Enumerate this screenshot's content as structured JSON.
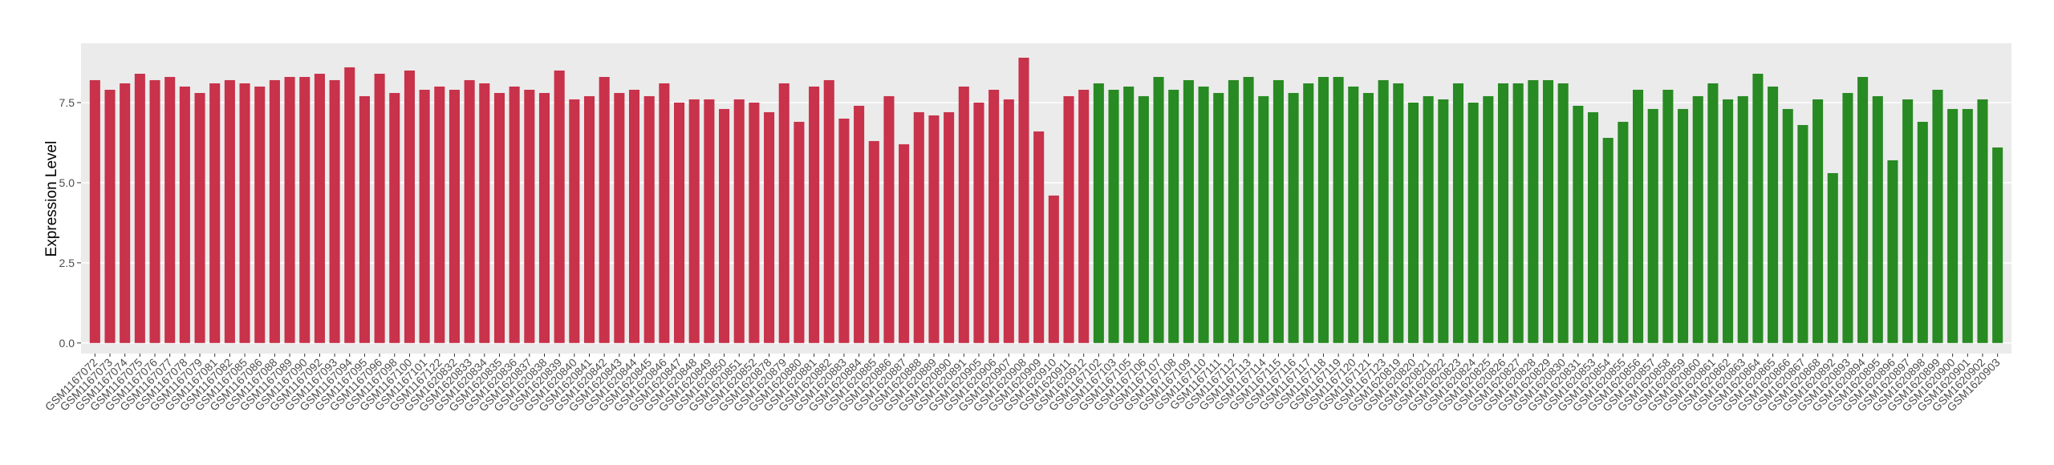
{
  "chart_data": {
    "type": "bar",
    "ylabel": "Expression Level",
    "categories": [
      "GSM1167072",
      "GSM1167073",
      "GSM1167074",
      "GSM1167075",
      "GSM1167076",
      "GSM1167077",
      "GSM1167078",
      "GSM1167079",
      "GSM1167081",
      "GSM1167082",
      "GSM1167085",
      "GSM1167086",
      "GSM1167088",
      "GSM1167089",
      "GSM1167090",
      "GSM1167092",
      "GSM1167093",
      "GSM1167094",
      "GSM1167095",
      "GSM1167096",
      "GSM1167098",
      "GSM1167100",
      "GSM1167101",
      "GSM1167122",
      "GSM1620832",
      "GSM1620833",
      "GSM1620834",
      "GSM1620835",
      "GSM1620836",
      "GSM1620837",
      "GSM1620838",
      "GSM1620839",
      "GSM1620840",
      "GSM1620841",
      "GSM1620842",
      "GSM1620843",
      "GSM1620844",
      "GSM1620845",
      "GSM1620846",
      "GSM1620847",
      "GSM1620848",
      "GSM1620849",
      "GSM1620850",
      "GSM1620851",
      "GSM1620852",
      "GSM1620878",
      "GSM1620879",
      "GSM1620880",
      "GSM1620881",
      "GSM1620882",
      "GSM1620883",
      "GSM1620884",
      "GSM1620885",
      "GSM1620886",
      "GSM1620887",
      "GSM1620888",
      "GSM1620889",
      "GSM1620890",
      "GSM1620891",
      "GSM1620905",
      "GSM1620906",
      "GSM1620907",
      "GSM1620908",
      "GSM1620909",
      "GSM1620910",
      "GSM1620911",
      "GSM1620912",
      "GSM1167102",
      "GSM1167103",
      "GSM1167105",
      "GSM1167106",
      "GSM1167107",
      "GSM1167108",
      "GSM1167109",
      "GSM1167110",
      "GSM1167111",
      "GSM1167112",
      "GSM1167113",
      "GSM1167114",
      "GSM1167115",
      "GSM1167116",
      "GSM1167117",
      "GSM1167118",
      "GSM1167119",
      "GSM1167120",
      "GSM1167121",
      "GSM1167123",
      "GSM1620819",
      "GSM1620820",
      "GSM1620821",
      "GSM1620822",
      "GSM1620823",
      "GSM1620824",
      "GSM1620825",
      "GSM1620826",
      "GSM1620827",
      "GSM1620828",
      "GSM1620829",
      "GSM1620830",
      "GSM1620831",
      "GSM1620853",
      "GSM1620854",
      "GSM1620855",
      "GSM1620856",
      "GSM1620857",
      "GSM1620858",
      "GSM1620859",
      "GSM1620860",
      "GSM1620861",
      "GSM1620862",
      "GSM1620863",
      "GSM1620864",
      "GSM1620865",
      "GSM1620866",
      "GSM1620867",
      "GSM1620868",
      "GSM1620892",
      "GSM1620893",
      "GSM1620894",
      "GSM1620895",
      "GSM1620896",
      "GSM1620897",
      "GSM1620898",
      "GSM1620899",
      "GSM1620900",
      "GSM1620901",
      "GSM1620902",
      "GSM1620903"
    ],
    "values": [
      8.2,
      7.9,
      8.1,
      8.4,
      8.2,
      8.3,
      8.0,
      7.8,
      8.1,
      8.2,
      8.1,
      8.0,
      8.2,
      8.3,
      8.3,
      8.4,
      8.2,
      8.6,
      7.7,
      8.4,
      7.8,
      8.5,
      7.9,
      8.0,
      7.9,
      8.2,
      8.1,
      7.8,
      8.0,
      7.9,
      7.8,
      8.5,
      7.6,
      7.7,
      8.3,
      7.8,
      7.9,
      7.7,
      8.1,
      7.5,
      7.6,
      7.6,
      7.3,
      7.6,
      7.5,
      7.2,
      8.1,
      6.9,
      8.0,
      8.2,
      7.0,
      7.4,
      6.3,
      7.7,
      6.2,
      7.2,
      7.1,
      7.2,
      8.0,
      7.5,
      7.9,
      7.6,
      8.9,
      6.6,
      4.6,
      7.7,
      7.9,
      8.1,
      7.9,
      8.0,
      7.7,
      8.3,
      7.9,
      8.2,
      8.0,
      7.8,
      8.2,
      8.3,
      7.7,
      8.2,
      7.8,
      8.1,
      8.3,
      8.3,
      8.0,
      7.8,
      8.2,
      8.1,
      7.5,
      7.7,
      7.6,
      8.1,
      7.5,
      7.7,
      8.1,
      8.1,
      8.2,
      8.2,
      8.1,
      7.4,
      7.2,
      6.4,
      6.9,
      7.9,
      7.3,
      7.9,
      7.3,
      7.7,
      8.1,
      7.6,
      7.7,
      8.4,
      8.0,
      7.3,
      6.8,
      7.6,
      5.3,
      7.8,
      8.3,
      7.7,
      5.7,
      7.6,
      6.9,
      7.9,
      7.3,
      7.3,
      7.6,
      6.1
    ],
    "colors": [
      "#c8324a",
      "#c8324a",
      "#c8324a",
      "#c8324a",
      "#c8324a",
      "#c8324a",
      "#c8324a",
      "#c8324a",
      "#c8324a",
      "#c8324a",
      "#c8324a",
      "#c8324a",
      "#c8324a",
      "#c8324a",
      "#c8324a",
      "#c8324a",
      "#c8324a",
      "#c8324a",
      "#c8324a",
      "#c8324a",
      "#c8324a",
      "#c8324a",
      "#c8324a",
      "#c8324a",
      "#c8324a",
      "#c8324a",
      "#c8324a",
      "#c8324a",
      "#c8324a",
      "#c8324a",
      "#c8324a",
      "#c8324a",
      "#c8324a",
      "#c8324a",
      "#c8324a",
      "#c8324a",
      "#c8324a",
      "#c8324a",
      "#c8324a",
      "#c8324a",
      "#c8324a",
      "#c8324a",
      "#c8324a",
      "#c8324a",
      "#c8324a",
      "#c8324a",
      "#c8324a",
      "#c8324a",
      "#c8324a",
      "#c8324a",
      "#c8324a",
      "#c8324a",
      "#c8324a",
      "#c8324a",
      "#c8324a",
      "#c8324a",
      "#c8324a",
      "#c8324a",
      "#c8324a",
      "#c8324a",
      "#c8324a",
      "#c8324a",
      "#c8324a",
      "#c8324a",
      "#c8324a",
      "#c8324a",
      "#c8324a",
      "#288a22",
      "#288a22",
      "#288a22",
      "#288a22",
      "#288a22",
      "#288a22",
      "#288a22",
      "#288a22",
      "#288a22",
      "#288a22",
      "#288a22",
      "#288a22",
      "#288a22",
      "#288a22",
      "#288a22",
      "#288a22",
      "#288a22",
      "#288a22",
      "#288a22",
      "#288a22",
      "#288a22",
      "#288a22",
      "#288a22",
      "#288a22",
      "#288a22",
      "#288a22",
      "#288a22",
      "#288a22",
      "#288a22",
      "#288a22",
      "#288a22",
      "#288a22",
      "#288a22",
      "#288a22",
      "#288a22",
      "#288a22",
      "#288a22",
      "#288a22",
      "#288a22",
      "#288a22",
      "#288a22",
      "#288a22",
      "#288a22",
      "#288a22",
      "#288a22",
      "#288a22",
      "#288a22",
      "#288a22",
      "#288a22",
      "#288a22",
      "#288a22",
      "#288a22",
      "#288a22",
      "#288a22",
      "#288a22",
      "#288a22",
      "#288a22",
      "#288a22",
      "#288a22",
      "#288a22",
      "#288a22"
    ],
    "ylim": [
      -0.33,
      9.35
    ],
    "yticks": [
      {
        "value": 0,
        "label": "0.0"
      },
      {
        "value": 2.5,
        "label": "2.5"
      },
      {
        "value": 5,
        "label": "5.0"
      },
      {
        "value": 7.5,
        "label": "7.5"
      }
    ],
    "grid": true
  }
}
